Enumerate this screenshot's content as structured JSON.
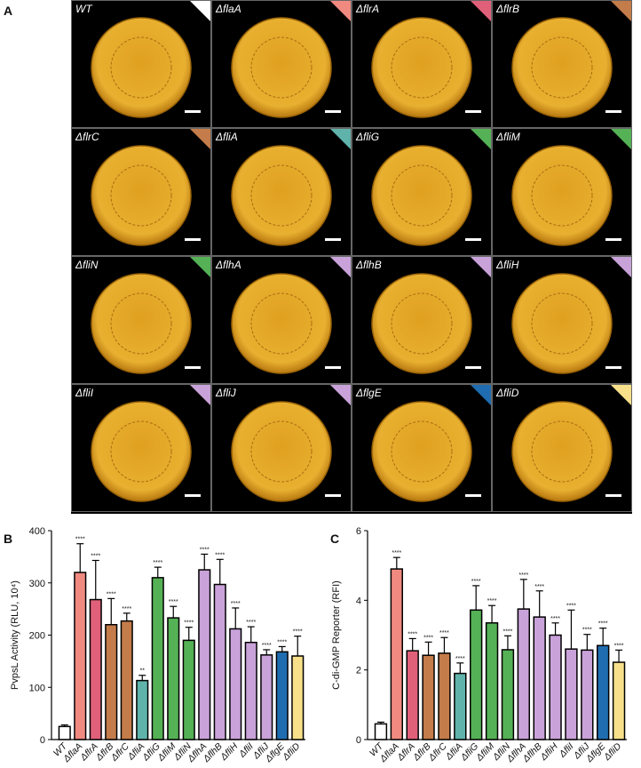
{
  "panel_a": {
    "panel_label": "A",
    "tiles": [
      {
        "label": "WT",
        "color": "#ffffff"
      },
      {
        "label": "ΔflaA",
        "color": "#f08a80"
      },
      {
        "label": "ΔflrA",
        "color": "#e0607a"
      },
      {
        "label": "ΔflrB",
        "color": "#c47c4a"
      },
      {
        "label": "ΔflrC",
        "color": "#c47c4a"
      },
      {
        "label": "ΔfliA",
        "color": "#5fb3ab"
      },
      {
        "label": "ΔfliG",
        "color": "#55b155"
      },
      {
        "label": "ΔfliM",
        "color": "#55b155"
      },
      {
        "label": "ΔfliN",
        "color": "#55b155"
      },
      {
        "label": "ΔflhA",
        "color": "#c9a2d9"
      },
      {
        "label": "ΔflhB",
        "color": "#c9a2d9"
      },
      {
        "label": "ΔfliH",
        "color": "#c9a2d9"
      },
      {
        "label": "ΔfliI",
        "color": "#c9a2d9"
      },
      {
        "label": "ΔfliJ",
        "color": "#c9a2d9"
      },
      {
        "label": "ΔflgE",
        "color": "#1f6db0"
      },
      {
        "label": "ΔfliD",
        "color": "#f8e08a"
      }
    ]
  },
  "chart_data": [
    {
      "type": "bar",
      "panel_label": "B",
      "y_label": "PvpsL Activity (RLU, 10⁴)",
      "categories": [
        "WT",
        "ΔflaA",
        "ΔflrA",
        "ΔflrB",
        "ΔflrC",
        "ΔfliA",
        "ΔfliG",
        "ΔfliM",
        "ΔfliN",
        "ΔflhA",
        "ΔflhB",
        "ΔfliH",
        "ΔfliI",
        "ΔfliJ",
        "ΔflgE",
        "ΔfliD"
      ],
      "values": [
        25,
        320,
        268,
        220,
        227,
        113,
        310,
        233,
        190,
        325,
        297,
        212,
        186,
        162,
        168,
        160
      ],
      "errors": [
        3,
        55,
        75,
        50,
        15,
        10,
        20,
        22,
        25,
        30,
        48,
        40,
        30,
        10,
        10,
        38
      ],
      "significance": [
        null,
        "****",
        "****",
        "****",
        "****",
        "**",
        "****",
        "****",
        "****",
        "****",
        "****",
        "****",
        "****",
        "****",
        "****",
        "****"
      ],
      "colors": [
        "#ffffff",
        "#f08a80",
        "#e0607a",
        "#c47c4a",
        "#c47c4a",
        "#5fb3ab",
        "#55b155",
        "#55b155",
        "#55b155",
        "#c9a2d9",
        "#c9a2d9",
        "#c9a2d9",
        "#c9a2d9",
        "#c9a2d9",
        "#1f6db0",
        "#f8e08a"
      ],
      "ylim": [
        0,
        400
      ],
      "yticks": [
        0,
        100,
        200,
        300,
        400
      ]
    },
    {
      "type": "bar",
      "panel_label": "C",
      "y_label": "C-di-GMP Reporter (RFI)",
      "categories": [
        "WT",
        "ΔflaA",
        "ΔflrA",
        "ΔflrB",
        "ΔflrC",
        "ΔfliA",
        "ΔfliG",
        "ΔfliM",
        "ΔfliN",
        "ΔflhA",
        "ΔflhB",
        "ΔfliH",
        "ΔfliI",
        "ΔfliJ",
        "ΔflgE",
        "ΔfliD"
      ],
      "values": [
        0.45,
        4.9,
        2.55,
        2.42,
        2.48,
        1.9,
        3.72,
        3.35,
        2.58,
        3.75,
        3.52,
        3.0,
        2.6,
        2.57,
        2.7,
        2.22
      ],
      "errors": [
        0.05,
        0.33,
        0.35,
        0.38,
        0.45,
        0.3,
        0.7,
        0.5,
        0.4,
        0.85,
        0.75,
        0.35,
        1.12,
        0.45,
        0.5,
        0.35
      ],
      "significance": [
        null,
        "****",
        "****",
        "****",
        "****",
        "****",
        "****",
        "****",
        "****",
        "****",
        "****",
        "****",
        "****",
        "****",
        "****",
        "****"
      ],
      "colors": [
        "#ffffff",
        "#f08a80",
        "#e0607a",
        "#c47c4a",
        "#c47c4a",
        "#5fb3ab",
        "#55b155",
        "#55b155",
        "#55b155",
        "#c9a2d9",
        "#c9a2d9",
        "#c9a2d9",
        "#c9a2d9",
        "#c9a2d9",
        "#1f6db0",
        "#f8e08a"
      ],
      "ylim": [
        0,
        6
      ],
      "yticks": [
        0,
        2,
        4,
        6
      ]
    }
  ]
}
